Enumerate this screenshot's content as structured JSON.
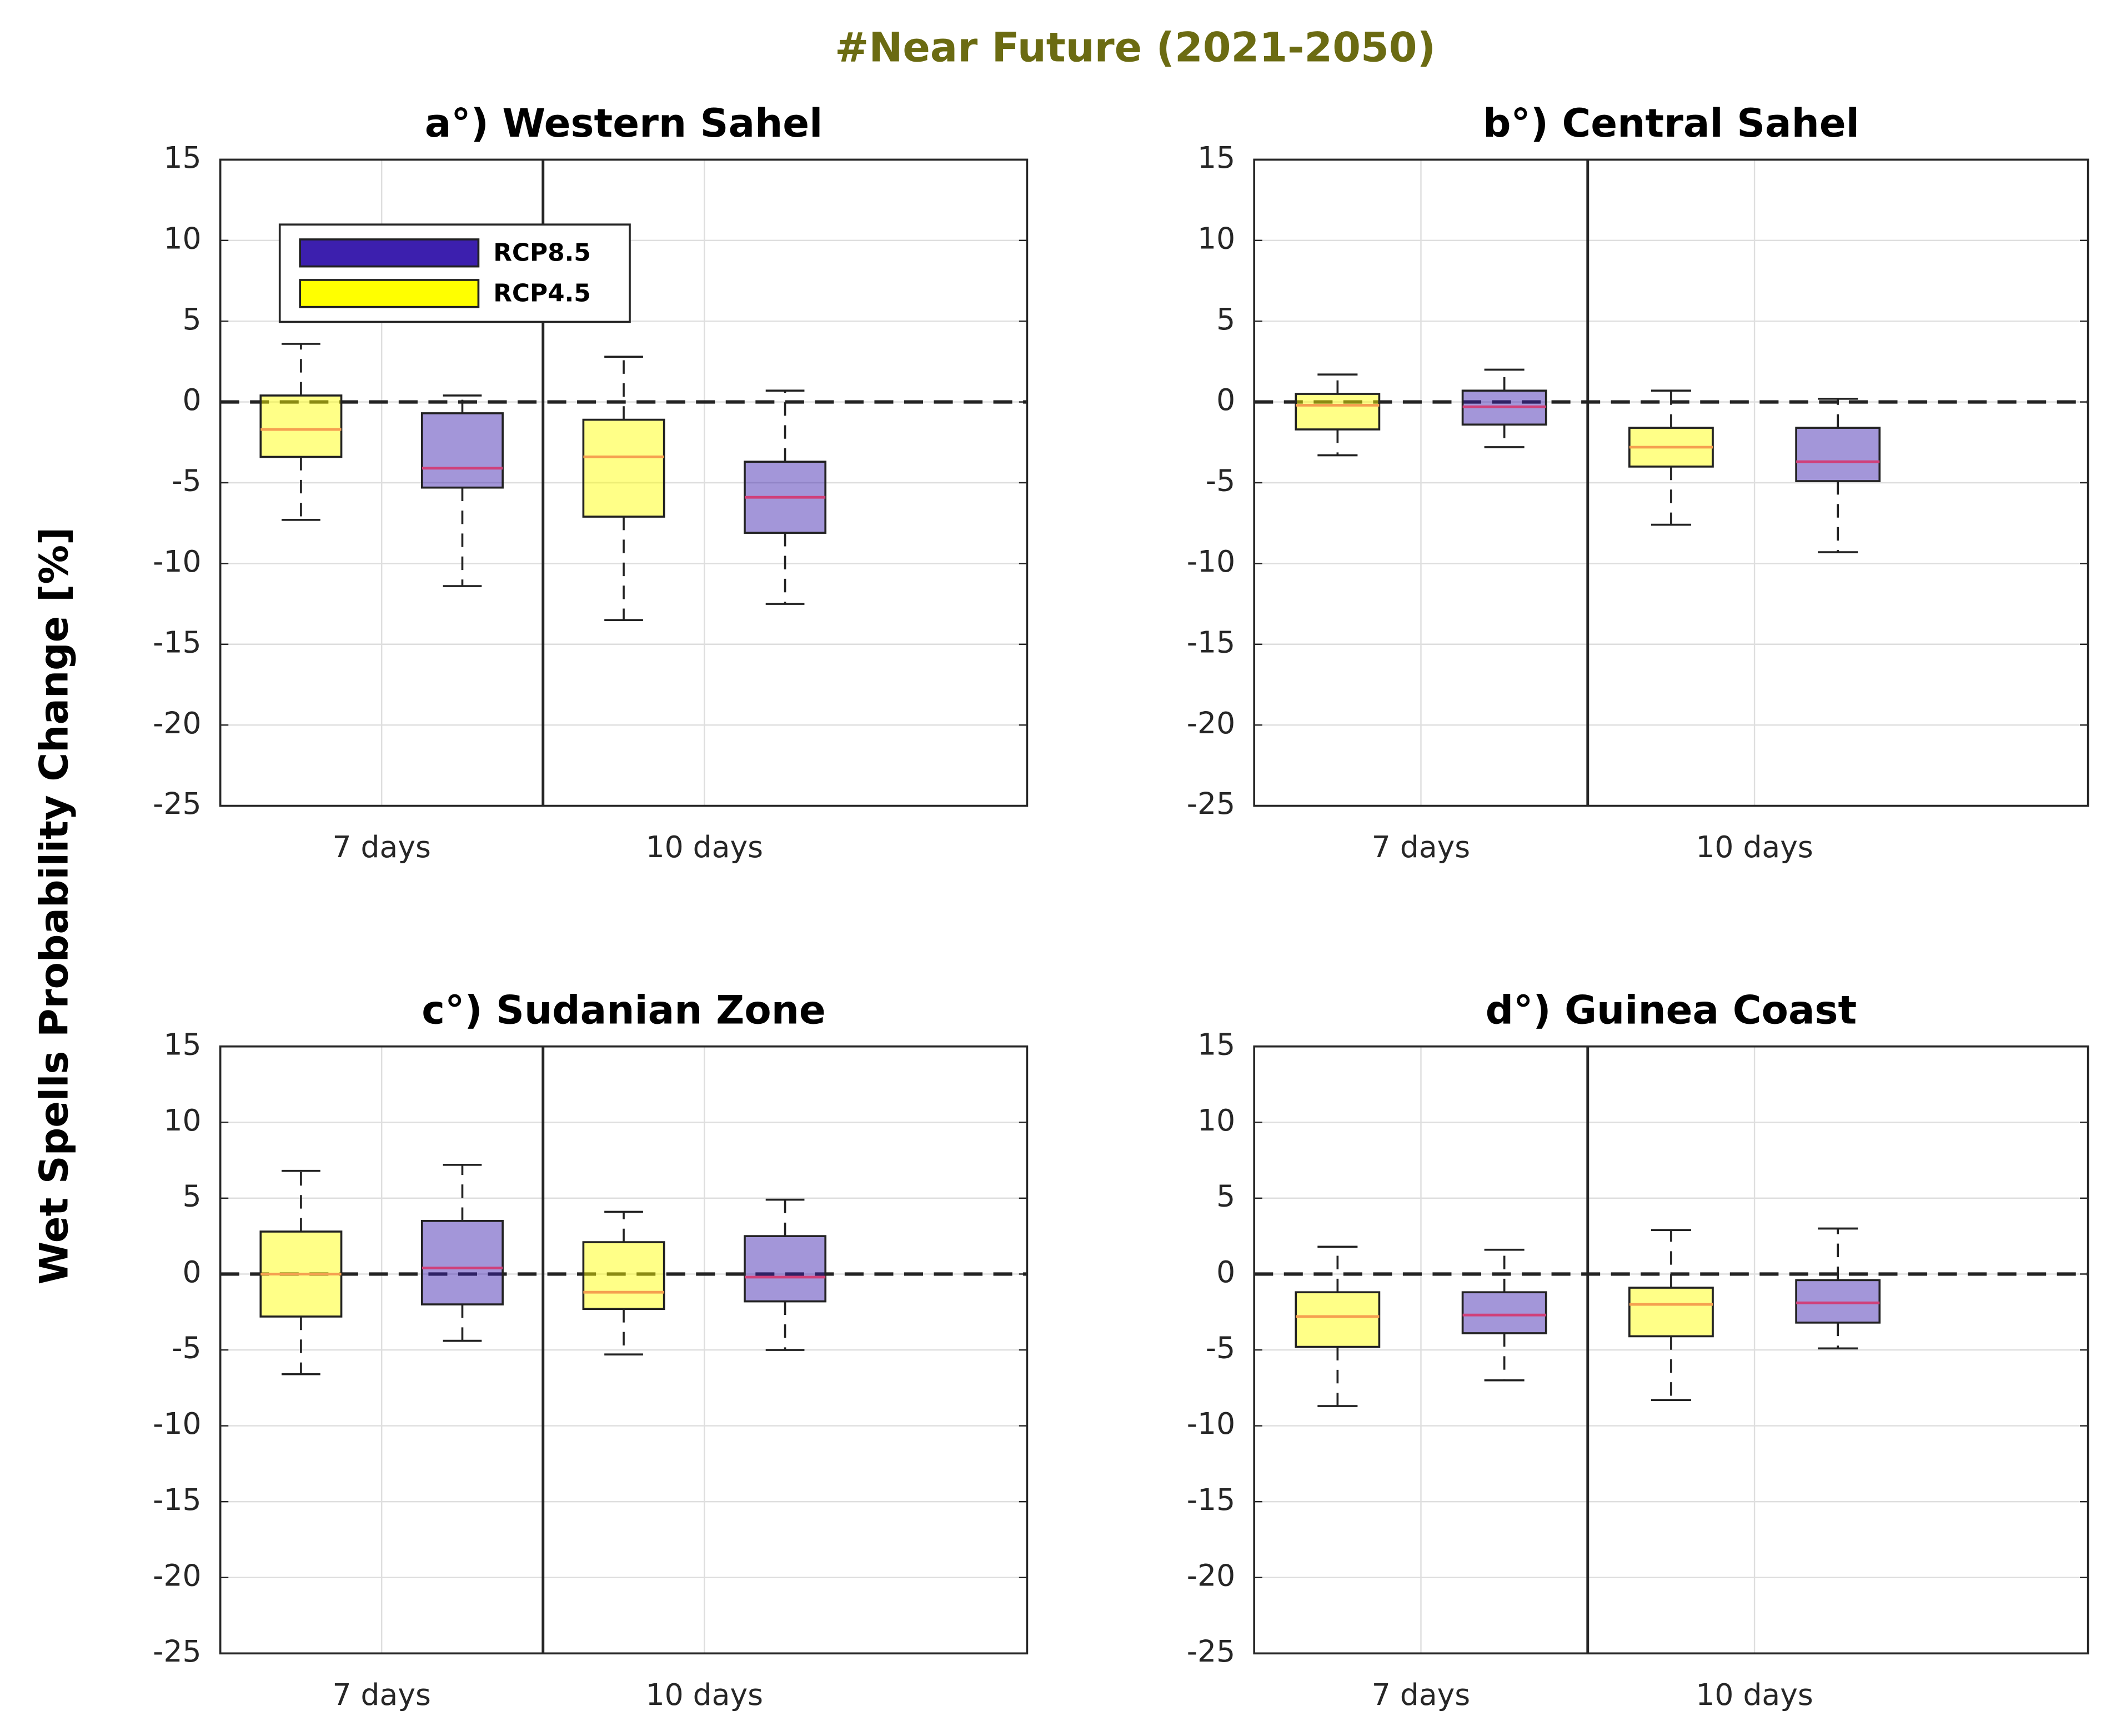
{
  "figure": {
    "title": "#Near Future (2021-2050)",
    "ylabel": "Wet Spells Probability Change [%]"
  },
  "chart_data": [
    {
      "type": "box",
      "title": "a°)  Western Sahel",
      "categories": [
        "7 days",
        "10 days"
      ],
      "ylim": [
        -25,
        15
      ],
      "yticks": [
        15,
        10,
        5,
        0,
        -5,
        -10,
        -15,
        -20,
        -25
      ],
      "grid": true,
      "hline": 0,
      "legend": "upper left",
      "series": [
        {
          "name": "RCP4.5",
          "color": "#ffff00",
          "median_color": "#f5a050",
          "low": [
            -7.3,
            -13.5
          ],
          "q1": [
            -3.4,
            -7.1
          ],
          "median": [
            -1.7,
            -3.4
          ],
          "q3": [
            0.4,
            -1.1
          ],
          "high": [
            3.6,
            2.8
          ]
        },
        {
          "name": "RCP8.5",
          "color": "#3c1fae",
          "median_color": "#d0407a",
          "low": [
            -11.4,
            -12.5
          ],
          "q1": [
            -5.3,
            -8.1
          ],
          "median": [
            -4.1,
            -5.9
          ],
          "q3": [
            -0.7,
            -3.7
          ],
          "high": [
            0.4,
            0.7
          ]
        }
      ]
    },
    {
      "type": "box",
      "title": "b°)  Central Sahel",
      "categories": [
        "7 days",
        "10 days"
      ],
      "ylim": [
        -25,
        15
      ],
      "yticks": [
        15,
        10,
        5,
        0,
        -5,
        -10,
        -15,
        -20,
        -25
      ],
      "grid": true,
      "hline": 0,
      "series": [
        {
          "color": "#ffff00",
          "median_color": "#f5a050",
          "low": [
            -3.3,
            -7.6
          ],
          "q1": [
            -1.7,
            -4.0
          ],
          "median": [
            -0.2,
            -2.8
          ],
          "q3": [
            0.5,
            -1.6
          ],
          "high": [
            1.7,
            0.7
          ]
        },
        {
          "color": "#3c1fae",
          "median_color": "#d0407a",
          "low": [
            -2.8,
            -9.3
          ],
          "q1": [
            -1.4,
            -4.9
          ],
          "median": [
            -0.3,
            -3.7
          ],
          "q3": [
            0.7,
            -1.6
          ],
          "high": [
            2.0,
            0.2
          ]
        }
      ]
    },
    {
      "type": "box",
      "title": "c°)  Sudanian Zone",
      "categories": [
        "7 days",
        "10 days"
      ],
      "ylim": [
        -25,
        15
      ],
      "yticks": [
        15,
        10,
        5,
        0,
        -5,
        -10,
        -15,
        -20,
        -25
      ],
      "grid": true,
      "hline": 0,
      "series": [
        {
          "color": "#ffff00",
          "median_color": "#f5a050",
          "low": [
            -6.6,
            -5.3
          ],
          "q1": [
            -2.8,
            -2.3
          ],
          "median": [
            0,
            -1.2
          ],
          "q3": [
            2.8,
            2.1
          ],
          "high": [
            6.8,
            4.1
          ]
        },
        {
          "color": "#3c1fae",
          "median_color": "#d0407a",
          "low": [
            -4.4,
            -5.0
          ],
          "q1": [
            -2.0,
            -1.8
          ],
          "median": [
            0.4,
            -0.2
          ],
          "q3": [
            3.5,
            2.5
          ],
          "high": [
            7.2,
            4.9
          ]
        }
      ]
    },
    {
      "type": "box",
      "title": "d°)  Guinea Coast",
      "categories": [
        "7 days",
        "10 days"
      ],
      "ylim": [
        -25,
        15
      ],
      "yticks": [
        15,
        10,
        5,
        0,
        -5,
        -10,
        -15,
        -20,
        -25
      ],
      "grid": true,
      "hline": 0,
      "series": [
        {
          "color": "#ffff00",
          "median_color": "#f5a050",
          "low": [
            -8.7,
            -8.3
          ],
          "q1": [
            -4.8,
            -4.1
          ],
          "median": [
            -2.8,
            -2.0
          ],
          "q3": [
            -1.2,
            -0.9
          ],
          "high": [
            1.8,
            2.9
          ]
        },
        {
          "color": "#3c1fae",
          "median_color": "#d0407a",
          "low": [
            -7.0,
            -4.9
          ],
          "q1": [
            -3.9,
            -3.2
          ],
          "median": [
            -2.7,
            -1.9
          ],
          "q3": [
            -1.2,
            -0.4
          ],
          "high": [
            1.6,
            3.0
          ]
        }
      ]
    }
  ]
}
